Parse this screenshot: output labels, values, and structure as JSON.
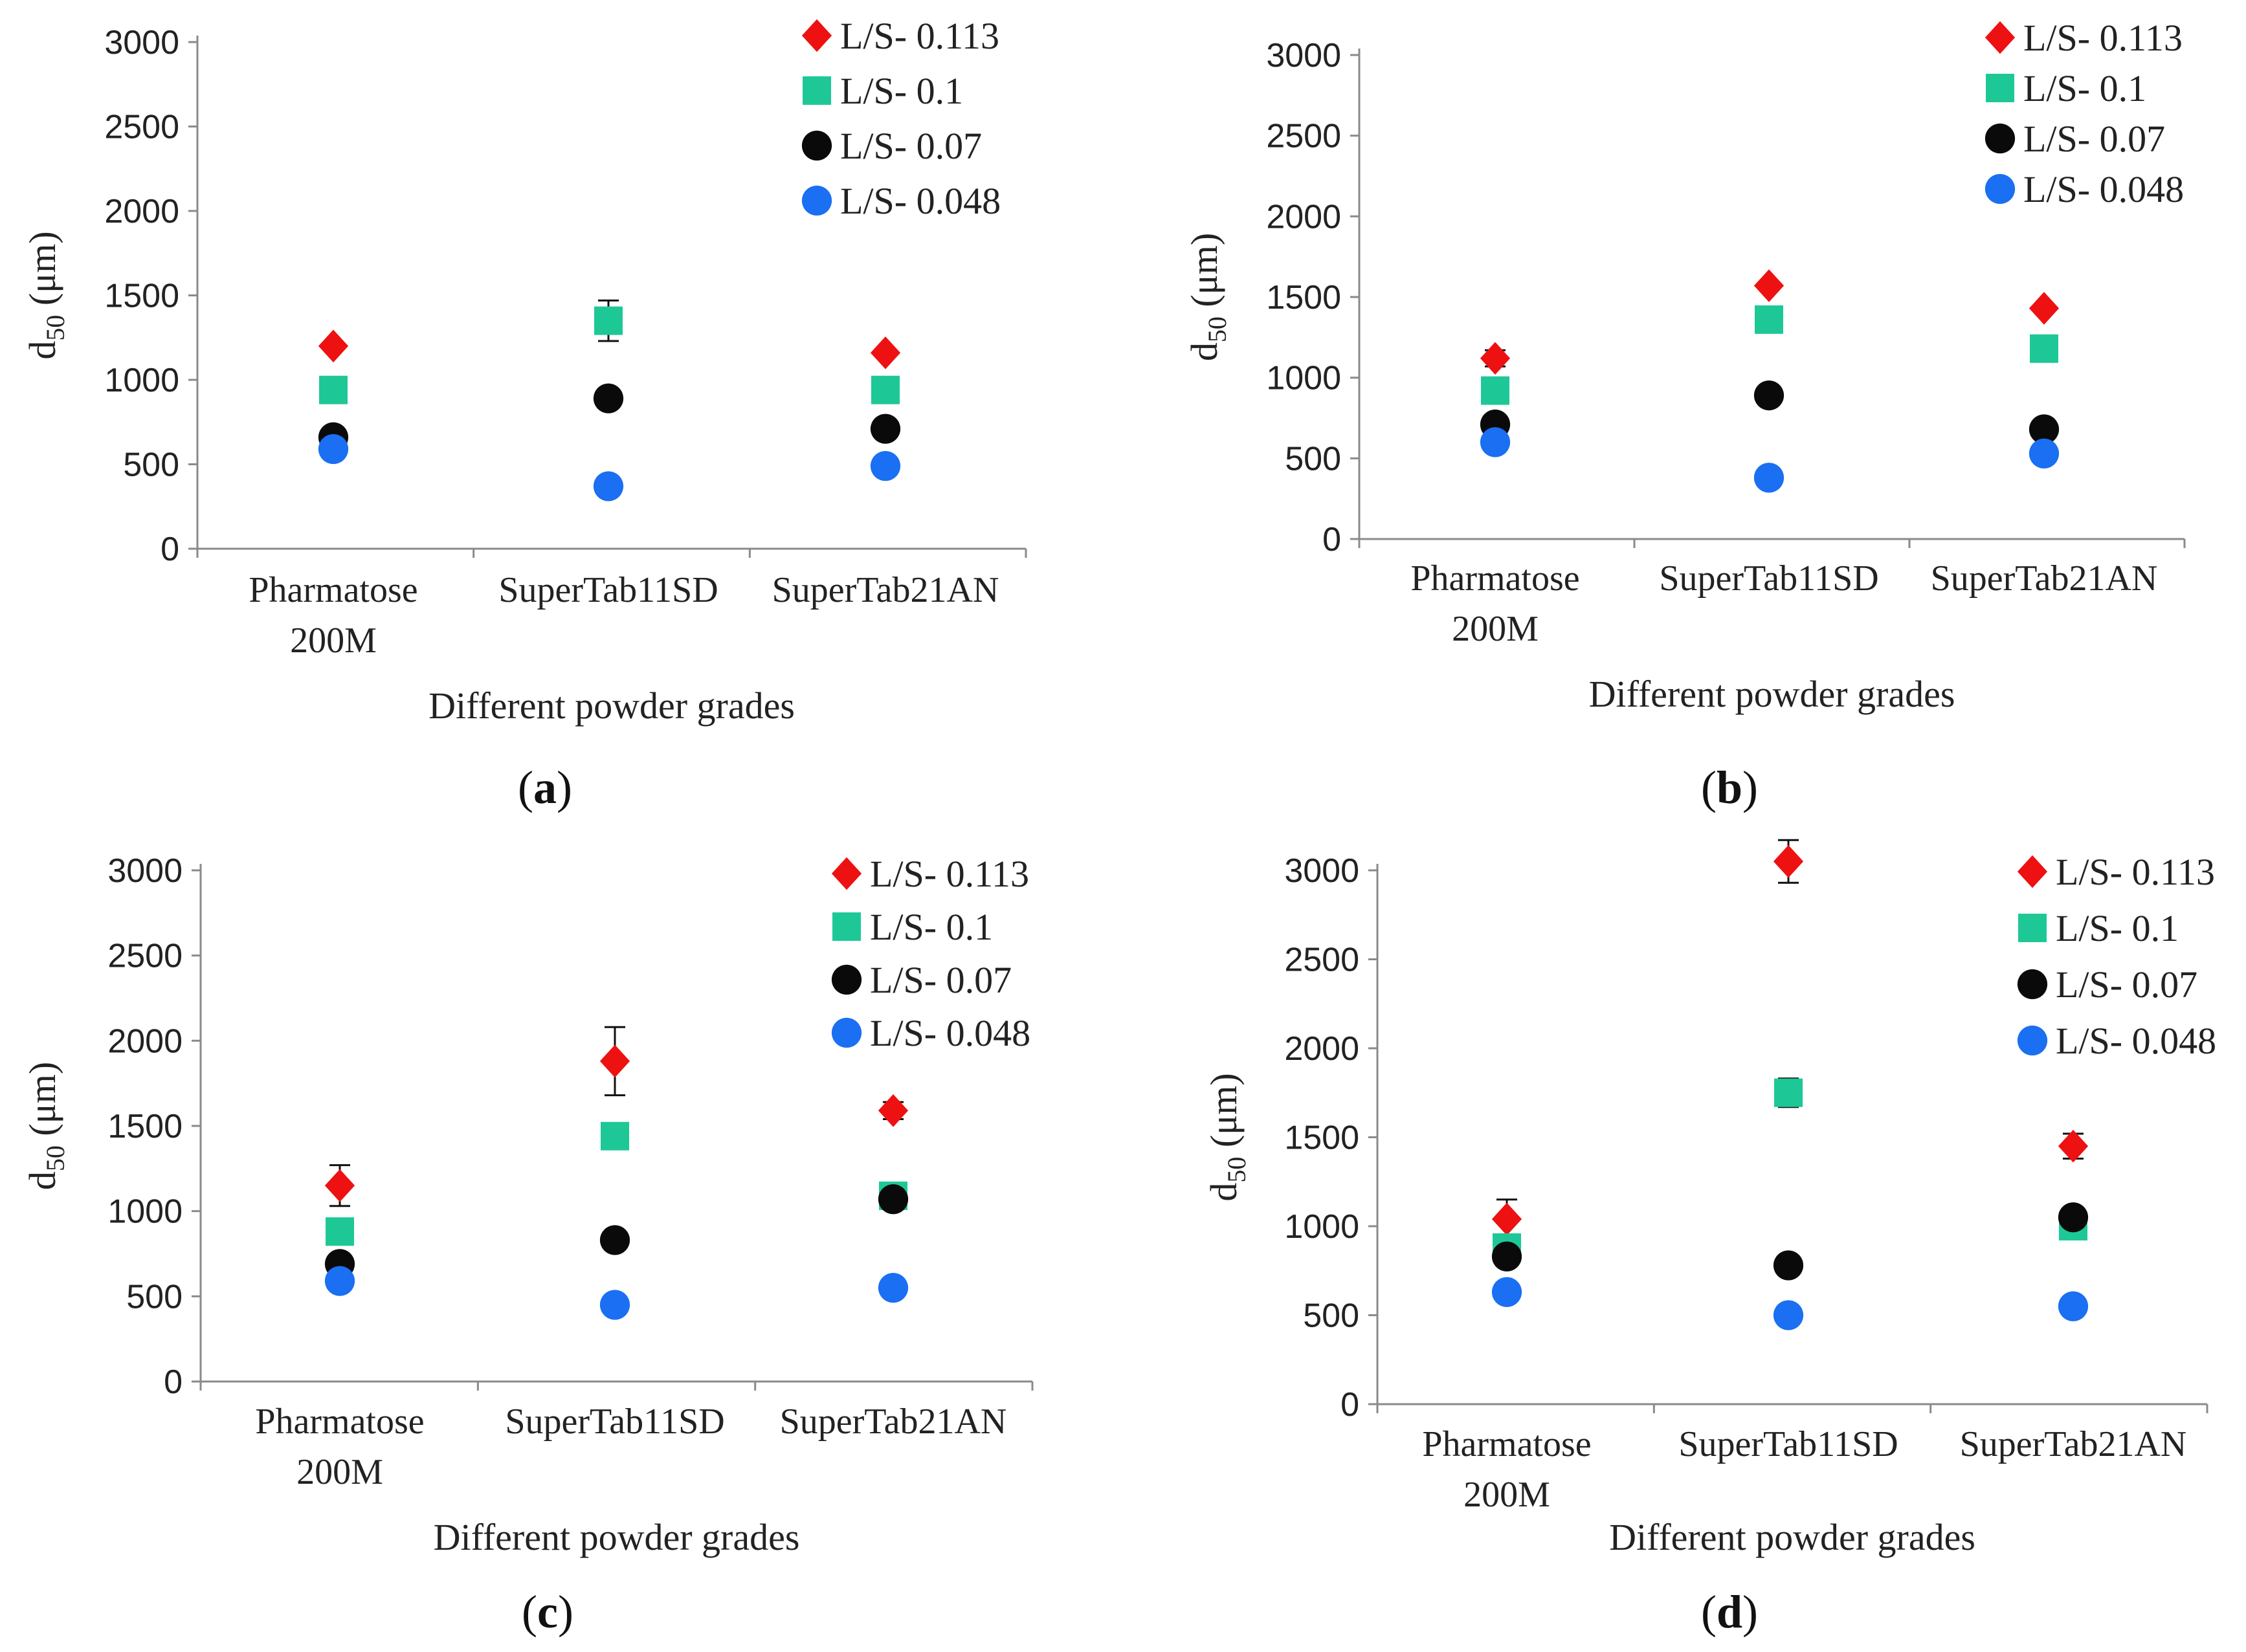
{
  "figure": {
    "colors": {
      "red": "#ee1111",
      "green": "#1ec896",
      "black": "#0a0a0a",
      "blue": "#1a6ff2",
      "axis": "#8a8a8a",
      "errorbar": "#111111"
    },
    "marker_shapes": [
      "diamond",
      "square",
      "circle",
      "circle"
    ]
  },
  "chart_data": [
    {
      "panel": "a",
      "type": "scatter",
      "xlabel": "Different powder grades",
      "ylabel": "d50 (μm)",
      "ylim": [
        0,
        3000
      ],
      "yticks": [
        0,
        500,
        1000,
        1500,
        2000,
        2500,
        3000
      ],
      "categories": [
        [
          "Pharmatose",
          "200M"
        ],
        [
          "SuperTab11SD"
        ],
        [
          "SuperTab21AN"
        ]
      ],
      "series": [
        {
          "name": "L/S- 0.113",
          "values": [
            1200,
            null,
            1160
          ],
          "errors": [
            null,
            null,
            null
          ]
        },
        {
          "name": "L/S- 0.1",
          "values": [
            940,
            1350,
            940
          ],
          "errors": [
            null,
            120,
            null
          ]
        },
        {
          "name": "L/S- 0.07",
          "values": [
            660,
            890,
            710
          ],
          "errors": [
            null,
            null,
            null
          ]
        },
        {
          "name": "L/S- 0.048",
          "values": [
            590,
            370,
            490
          ],
          "errors": [
            null,
            null,
            null
          ]
        }
      ]
    },
    {
      "panel": "b",
      "type": "scatter",
      "xlabel": "Different powder grades",
      "ylabel": "d50 (μm)",
      "ylim": [
        0,
        3000
      ],
      "yticks": [
        0,
        500,
        1000,
        1500,
        2000,
        2500,
        3000
      ],
      "categories": [
        [
          "Pharmatose",
          "200M"
        ],
        [
          "SuperTab11SD"
        ],
        [
          "SuperTab21AN"
        ]
      ],
      "series": [
        {
          "name": "L/S- 0.113",
          "values": [
            1120,
            1570,
            1430
          ],
          "errors": [
            50,
            null,
            null
          ]
        },
        {
          "name": "L/S- 0.1",
          "values": [
            920,
            1360,
            1180
          ],
          "errors": [
            null,
            null,
            null
          ]
        },
        {
          "name": "L/S- 0.07",
          "values": [
            710,
            890,
            680
          ],
          "errors": [
            null,
            null,
            null
          ]
        },
        {
          "name": "L/S- 0.048",
          "values": [
            600,
            380,
            530
          ],
          "errors": [
            null,
            null,
            null
          ]
        }
      ]
    },
    {
      "panel": "c",
      "type": "scatter",
      "xlabel": "Different powder grades",
      "ylabel": "d50 (μm)",
      "ylim": [
        0,
        3000
      ],
      "yticks": [
        0,
        500,
        1000,
        1500,
        2000,
        2500,
        3000
      ],
      "categories": [
        [
          "Pharmatose",
          "200M"
        ],
        [
          "SuperTab11SD"
        ],
        [
          "SuperTab21AN"
        ]
      ],
      "series": [
        {
          "name": "L/S- 0.113",
          "values": [
            1150,
            1880,
            1590
          ],
          "errors": [
            120,
            200,
            50
          ]
        },
        {
          "name": "L/S- 0.1",
          "values": [
            880,
            1440,
            1090
          ],
          "errors": [
            null,
            null,
            null
          ]
        },
        {
          "name": "L/S- 0.07",
          "values": [
            690,
            830,
            1070
          ],
          "errors": [
            null,
            null,
            null
          ]
        },
        {
          "name": "L/S- 0.048",
          "values": [
            590,
            450,
            550
          ],
          "errors": [
            null,
            null,
            null
          ]
        }
      ]
    },
    {
      "panel": "d",
      "type": "scatter",
      "xlabel": "Different powder grades",
      "ylabel": "d50 (μm)",
      "ylim": [
        0,
        3000
      ],
      "yticks": [
        0,
        500,
        1000,
        1500,
        2000,
        2500,
        3000
      ],
      "categories": [
        [
          "Pharmatose",
          "200M"
        ],
        [
          "SuperTab11SD"
        ],
        [
          "SuperTab21AN"
        ]
      ],
      "series": [
        {
          "name": "L/S- 0.113",
          "values": [
            1040,
            3050,
            1450
          ],
          "errors": [
            110,
            120,
            70
          ]
        },
        {
          "name": "L/S- 0.1",
          "values": [
            880,
            1750,
            1000
          ],
          "errors": [
            null,
            80,
            null
          ]
        },
        {
          "name": "L/S- 0.07",
          "values": [
            830,
            780,
            1050
          ],
          "errors": [
            null,
            null,
            null
          ]
        },
        {
          "name": "L/S- 0.048",
          "values": [
            630,
            500,
            550
          ],
          "errors": [
            null,
            null,
            null
          ]
        }
      ]
    }
  ],
  "panel_labels": {
    "a": {
      "open": "(",
      "letter": "a",
      "close": ")"
    },
    "b": {
      "open": "(",
      "letter": "b",
      "close": ")"
    },
    "c": {
      "open": "(",
      "letter": "c",
      "close": ")"
    },
    "d": {
      "open": "(",
      "letter": "d",
      "close": ")"
    }
  }
}
